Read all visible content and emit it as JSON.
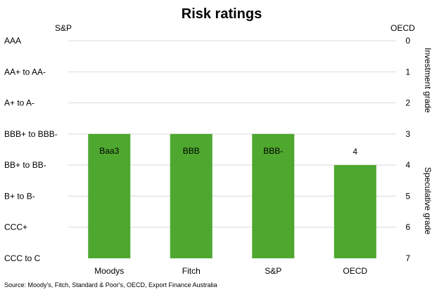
{
  "chart_data": {
    "type": "bar",
    "title": "Risk ratings",
    "left_axis_title": "S&P",
    "right_axis_title": "OECD",
    "left_tick_labels": [
      "AAA",
      "AA+ to AA-",
      "A+ to A-",
      "BBB+ to BBB-",
      "BB+ to BB-",
      "B+ to B-",
      "CCC+",
      "CCC to C"
    ],
    "right_tick_labels": [
      "0",
      "1",
      "2",
      "3",
      "4",
      "5",
      "6",
      "7"
    ],
    "ylim": [
      0,
      7
    ],
    "y_inverted": true,
    "grid": true,
    "categories": [
      "Moodys",
      "Fitch",
      "S&P",
      "OECD"
    ],
    "values": [
      3,
      3,
      3,
      4
    ],
    "data_labels": [
      "Baa3",
      "BBB",
      "BBB-",
      "4"
    ],
    "bar_color": "#4ea72e",
    "zone_labels": [
      "Investment grade",
      "Speculative grade"
    ],
    "source": "Source: Moody's, Fitch, Standard & Poor's, OECD, Export Finance Australia"
  }
}
